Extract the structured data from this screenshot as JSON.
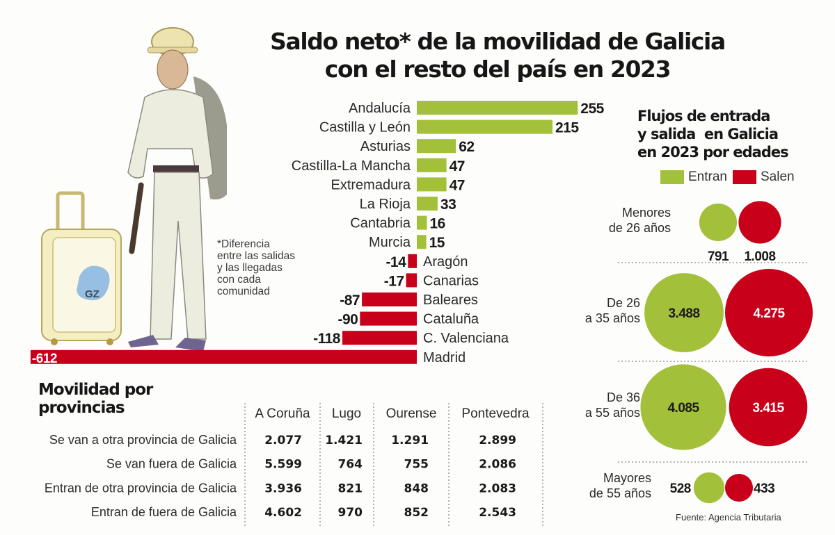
{
  "colors": {
    "positive": "#a3c03a",
    "negative": "#c8001a",
    "text": "#1c1c1c"
  },
  "illustration": {
    "suitcase_logo": "GZ"
  },
  "chart_data": [
    {
      "type": "bar",
      "orientation": "horizontal",
      "title": "Saldo neto* de la movilidad de Galicia con el resto del país en 2023",
      "title_line1": "Saldo neto* de la movilidad de Galicia",
      "title_line2": "con el resto del país en 2023",
      "footnote": [
        "*Diferencia",
        "entre las salidas",
        "y las llegadas",
        "con cada",
        "comunidad"
      ],
      "xlim": [
        -612,
        255
      ],
      "categories": [
        "Andalucía",
        "Castilla y León",
        "Asturias",
        "Castilla-La Mancha",
        "Extremadura",
        "La Rioja",
        "Cantabria",
        "Murcia",
        "Aragón",
        "Canarias",
        "Baleares",
        "Cataluña",
        "C. Valenciana",
        "Madrid"
      ],
      "values": [
        255,
        215,
        62,
        47,
        47,
        33,
        16,
        15,
        -14,
        -17,
        -87,
        -90,
        -118,
        -612
      ],
      "labels": [
        "255",
        "215",
        "62",
        "47",
        "47",
        "33",
        "16",
        "15",
        "-14",
        "-17",
        "-87",
        "-90",
        "-118",
        "-612"
      ]
    },
    {
      "type": "table",
      "title_line1": "Movilidad por",
      "title_line2": "provincias",
      "columns": [
        "A Coruña",
        "Lugo",
        "Ourense",
        "Pontevedra"
      ],
      "rows": [
        {
          "label": "Se van a otra provincia de Galicia",
          "values": [
            "2.077",
            "1.421",
            "1.291",
            "2.899"
          ]
        },
        {
          "label": "Se van fuera de Galicia",
          "values": [
            "5.599",
            "764",
            "755",
            "2.086"
          ]
        },
        {
          "label": "Entran de otra provincia de Galicia",
          "values": [
            "3.936",
            "821",
            "848",
            "2.083"
          ]
        },
        {
          "label": "Entran de fuera de Galicia",
          "values": [
            "4.602",
            "970",
            "852",
            "2.543"
          ]
        }
      ]
    },
    {
      "type": "bubble",
      "title_line1": "Flujos de entrada",
      "title_line2": "y salida  en Galicia",
      "title_line3": "en 2023 por edades",
      "legend": [
        "Entran",
        "Salen"
      ],
      "groups": [
        {
          "label_line1": "Menores",
          "label_line2": "de 26 años",
          "entran": 791,
          "salen": 1008,
          "entran_label": "791",
          "salen_label": "1.008"
        },
        {
          "label_line1": "De 26",
          "label_line2": "a 35 años",
          "entran": 3488,
          "salen": 4275,
          "entran_label": "3.488",
          "salen_label": "4.275"
        },
        {
          "label_line1": "De 36",
          "label_line2": "a 55 años",
          "entran": 4085,
          "salen": 3415,
          "entran_label": "4.085",
          "salen_label": "3.415"
        },
        {
          "label_line1": "Mayores",
          "label_line2": "de 55 años",
          "entran": 528,
          "salen": 433,
          "entran_label": "528",
          "salen_label": "433"
        }
      ],
      "source": "Fuente: Agencia Tributaria"
    }
  ]
}
